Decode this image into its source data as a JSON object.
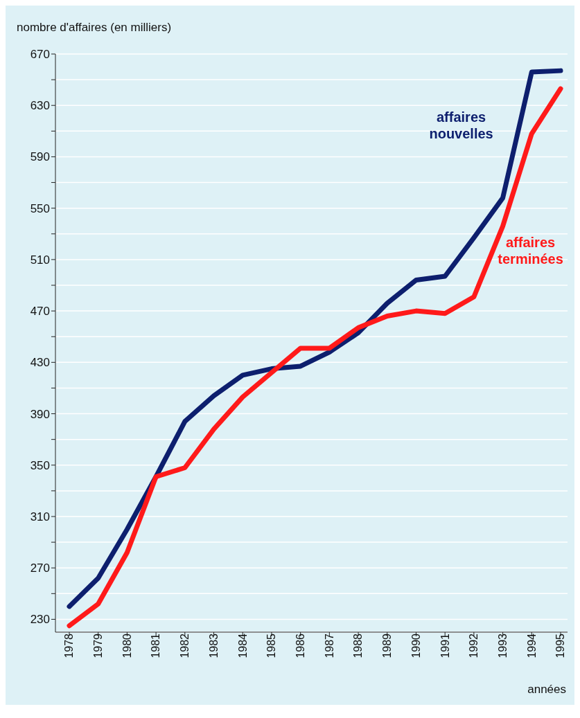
{
  "chart_data": {
    "type": "line",
    "ylabel": "nombre d'affaires (en milliers)",
    "xlabel": "années",
    "categories": [
      "1978",
      "1979",
      "1980",
      "1981",
      "1982",
      "1983",
      "1984",
      "1985",
      "1986",
      "1987",
      "1988",
      "1989",
      "1990",
      "1991",
      "1992",
      "1993",
      "1994",
      "1995"
    ],
    "series": [
      {
        "name": "affaires nouvelles",
        "color": "#0d1f6e",
        "values": [
          240,
          262,
          300,
          341,
          384,
          404,
          420,
          425,
          427,
          438,
          453,
          476,
          494,
          497,
          527,
          558,
          656,
          657
        ]
      },
      {
        "name": "affaires terminées",
        "color": "#ff1a1a",
        "values": [
          225,
          242,
          282,
          341,
          348,
          378,
          403,
          422,
          441,
          441,
          457,
          466,
          470,
          468,
          481,
          536,
          608,
          643
        ]
      }
    ],
    "ylim": [
      220,
      670
    ],
    "yticks": [
      {
        "value": 230,
        "label": "230"
      },
      {
        "value": 250,
        "label": null
      },
      {
        "value": 270,
        "label": "270"
      },
      {
        "value": 290,
        "label": null
      },
      {
        "value": 310,
        "label": "310"
      },
      {
        "value": 330,
        "label": null
      },
      {
        "value": 350,
        "label": "350"
      },
      {
        "value": 370,
        "label": null
      },
      {
        "value": 390,
        "label": "390"
      },
      {
        "value": 410,
        "label": null
      },
      {
        "value": 430,
        "label": "430"
      },
      {
        "value": 450,
        "label": null
      },
      {
        "value": 470,
        "label": "470"
      },
      {
        "value": 490,
        "label": null
      },
      {
        "value": 510,
        "label": "510"
      },
      {
        "value": 530,
        "label": null
      },
      {
        "value": 550,
        "label": "550"
      },
      {
        "value": 570,
        "label": null
      },
      {
        "value": 590,
        "label": "590"
      },
      {
        "value": 610,
        "label": null
      },
      {
        "value": 630,
        "label": "630"
      },
      {
        "value": 650,
        "label": null
      },
      {
        "value": 670,
        "label": "670"
      }
    ],
    "grid": "y",
    "marker": "none",
    "line_style": "solid"
  }
}
